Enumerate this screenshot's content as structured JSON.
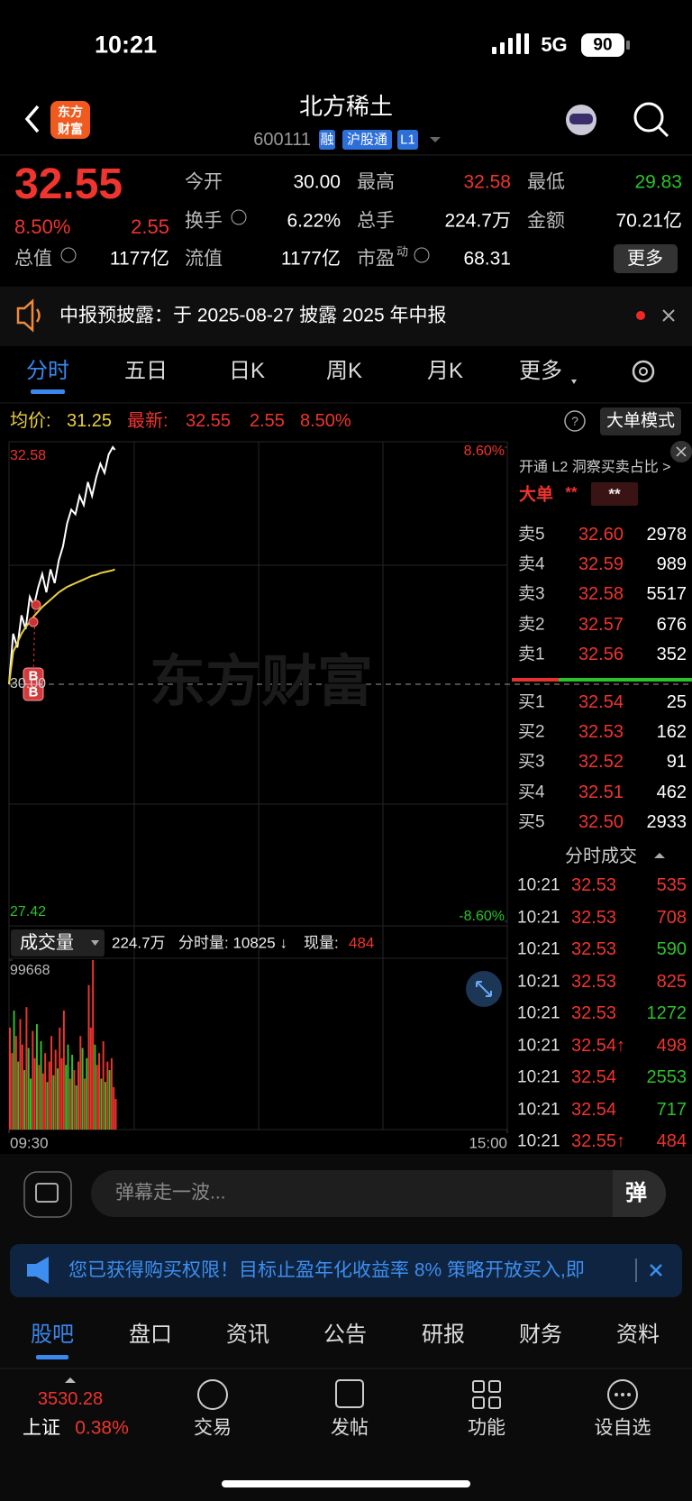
{
  "status_bar": {
    "time": "10:21",
    "network": "5G",
    "battery": "90"
  },
  "header": {
    "logo": [
      "东方",
      "财富"
    ],
    "title": "北方稀土",
    "code": "600111",
    "badges": [
      "融",
      "沪股通",
      "L1"
    ]
  },
  "quote": {
    "price": "32.55",
    "change_pct": "8.50%",
    "change": "2.55",
    "stats": [
      {
        "label": "今开",
        "value": "30.00",
        "color": "white"
      },
      {
        "label": "最高",
        "value": "32.58",
        "color": "red"
      },
      {
        "label": "最低",
        "value": "29.83",
        "color": "green"
      },
      {
        "label": "换手",
        "value": "6.22%",
        "color": "white"
      },
      {
        "label": "总手",
        "value": "224.7万",
        "color": "white"
      },
      {
        "label": "金额",
        "value": "70.21亿",
        "color": "white"
      },
      {
        "label": "总值",
        "value": "1177亿",
        "color": "white"
      },
      {
        "label": "流值",
        "value": "1177亿",
        "color": "white"
      },
      {
        "label": "市盈",
        "sup": "动",
        "value": "68.31",
        "color": "white"
      }
    ],
    "more": "更多"
  },
  "notice": "中报预披露：于 2025-08-27 披露 2025 年中报",
  "tabs": {
    "items": [
      "分时",
      "五日",
      "日K",
      "周K",
      "月K",
      "更多"
    ],
    "active": 0
  },
  "chart_data": [
    {
      "type": "line",
      "header": [
        "均价:",
        "31.25",
        "最新:",
        "32.55",
        "2.55",
        "8.50%"
      ],
      "mode_button": "大单模式",
      "watermark": "东方财富",
      "x": [
        0,
        2,
        4,
        6,
        8,
        10,
        12,
        14,
        16,
        18,
        20,
        22,
        24,
        26,
        28,
        30,
        32,
        34,
        36,
        38,
        40,
        42,
        44,
        46,
        48,
        50,
        51
      ],
      "series": [
        {
          "color": "#ffffff",
          "values": [
            30.0,
            30.55,
            30.4,
            30.75,
            30.6,
            30.95,
            30.85,
            31.05,
            31.2,
            31.0,
            31.25,
            31.1,
            31.35,
            31.5,
            31.75,
            31.9,
            31.85,
            32.05,
            31.95,
            32.2,
            32.05,
            32.25,
            32.4,
            32.3,
            32.5,
            32.58,
            32.55
          ]
        },
        {
          "color": "#e8d040",
          "values": [
            30.0,
            30.35,
            30.45,
            30.55,
            30.62,
            30.68,
            30.74,
            30.79,
            30.84,
            30.88,
            30.92,
            30.96,
            31.0,
            31.03,
            31.06,
            31.08,
            31.1,
            31.12,
            31.14,
            31.16,
            31.18,
            31.19,
            31.21,
            31.22,
            31.23,
            31.24,
            31.25
          ]
        }
      ],
      "xlim": [
        0,
        240
      ],
      "ylim": [
        27.42,
        32.58
      ],
      "yticks": [
        32.58,
        {
          "value": 30,
          "label": "30.00"
        },
        27.42
      ],
      "y2lim": [
        -8.6,
        8.6
      ],
      "y2ticks": [
        {
          "value": 8.6,
          "label": "8.60%"
        },
        {
          "value": -8.6,
          "label": "-8.60%"
        }
      ],
      "annotations": [
        {
          "label": "B"
        },
        {
          "label": "B"
        }
      ]
    },
    {
      "type": "bar",
      "title": "成交量",
      "info": [
        "224.7万",
        "分时量: 10825 ↓",
        "现量:",
        "484"
      ],
      "values": [
        60000,
        45000,
        70000,
        55000,
        40000,
        65000,
        50000,
        35000,
        72000,
        48000,
        30000,
        58000,
        42000,
        62000,
        38000,
        52000,
        33000,
        45000,
        28000,
        40000,
        55000,
        32000,
        47000,
        36000,
        60000,
        42000,
        70000,
        38000,
        50000,
        30000,
        44000,
        35000,
        26000,
        40000,
        55000,
        48000,
        30000,
        42000,
        85000,
        60000,
        99668,
        50000,
        38000,
        45000,
        30000,
        52000,
        28000,
        40000,
        35000,
        42000,
        25000,
        18000
      ],
      "colors": [
        "red",
        "red",
        "green",
        "red",
        "green",
        "red",
        "red",
        "green",
        "red",
        "green",
        "green",
        "red",
        "red",
        "green",
        "red",
        "green",
        "red",
        "red",
        "green",
        "red",
        "red",
        "green",
        "red",
        "green",
        "red",
        "red",
        "red",
        "green",
        "green",
        "red",
        "green",
        "red",
        "green",
        "red",
        "red",
        "green",
        "red",
        "green",
        "red",
        "red",
        "red",
        "green",
        "red",
        "red",
        "green",
        "red",
        "green",
        "red",
        "green",
        "red",
        "red",
        "red"
      ],
      "ylim": [
        0,
        99668
      ],
      "yticks": [
        99668
      ],
      "xlim": [
        0,
        240
      ],
      "xticks": [
        {
          "value": 0,
          "label": "09:30"
        },
        {
          "value": 240,
          "label": "15:00"
        }
      ]
    }
  ],
  "order_book": {
    "promo": "开通 L2 洞察买卖占比 >",
    "big_order": [
      "大单",
      "**",
      "**"
    ],
    "asks": [
      [
        "卖5",
        "32.60",
        "2978"
      ],
      [
        "卖4",
        "32.59",
        "989"
      ],
      [
        "卖3",
        "32.58",
        "5517"
      ],
      [
        "卖2",
        "32.57",
        "676"
      ],
      [
        "卖1",
        "32.56",
        "352"
      ]
    ],
    "bids": [
      [
        "买1",
        "32.54",
        "25"
      ],
      [
        "买2",
        "32.53",
        "162"
      ],
      [
        "买3",
        "32.52",
        "91"
      ],
      [
        "买4",
        "32.51",
        "462"
      ],
      [
        "买5",
        "32.50",
        "2933"
      ]
    ],
    "trades_title": "分时成交",
    "trades": [
      {
        "time": "10:21",
        "price": "32.53",
        "volume": "535",
        "color": "red"
      },
      {
        "time": "10:21",
        "price": "32.53",
        "volume": "708",
        "color": "red"
      },
      {
        "time": "10:21",
        "price": "32.53",
        "volume": "590",
        "color": "green"
      },
      {
        "time": "10:21",
        "price": "32.53",
        "volume": "825",
        "color": "red"
      },
      {
        "time": "10:21",
        "price": "32.53",
        "volume": "1272",
        "color": "green"
      },
      {
        "time": "10:21",
        "price": "32.54↑",
        "volume": "498",
        "color": "red"
      },
      {
        "time": "10:21",
        "price": "32.54",
        "volume": "2553",
        "color": "green"
      },
      {
        "time": "10:21",
        "price": "32.54",
        "volume": "717",
        "color": "green"
      },
      {
        "time": "10:21",
        "price": "32.55↑",
        "volume": "484",
        "color": "red"
      }
    ]
  },
  "comment_box": {
    "placeholder": "弹幕走一波...",
    "button": "弹"
  },
  "banner": "您已获得购买权限！目标止盈年化收益率 8% 策略开放买入,即",
  "bottom_tabs": {
    "items": [
      "股吧",
      "盘口",
      "资讯",
      "公告",
      "研报",
      "财务",
      "资料"
    ],
    "active": 0
  },
  "nav": {
    "index": {
      "value": "3530.28",
      "name": "上证",
      "change": "0.38%"
    },
    "items": [
      "交易",
      "发帖",
      "功能",
      "设自选"
    ]
  }
}
